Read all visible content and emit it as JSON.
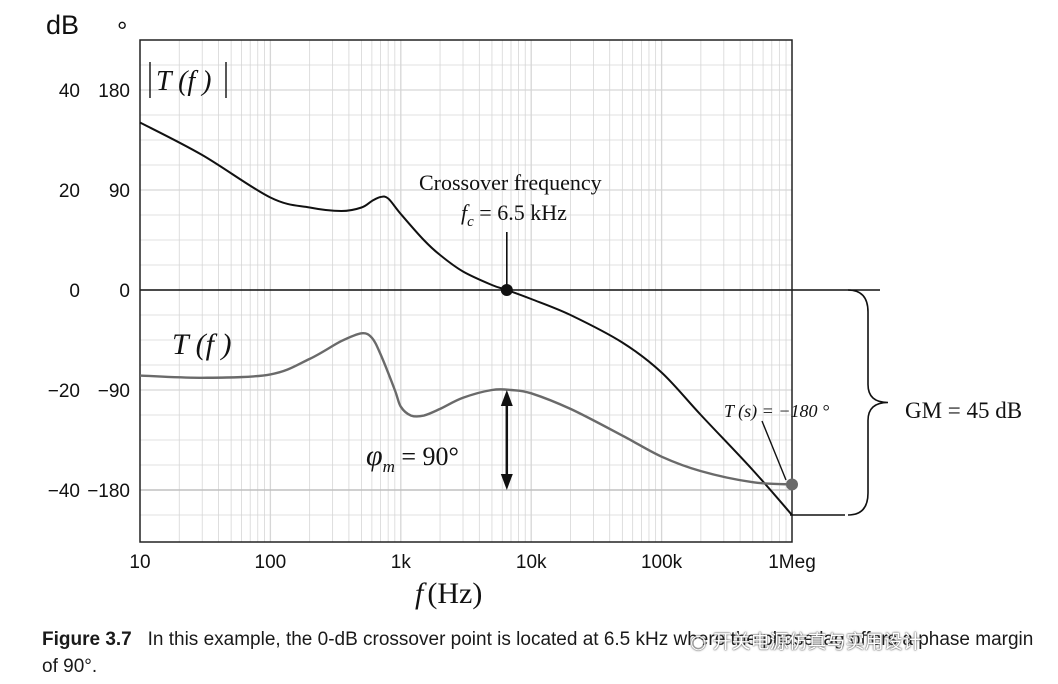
{
  "chart_data": {
    "type": "line",
    "unit_db": "dB",
    "unit_deg": "°",
    "x_ticks": [
      "10",
      "100",
      "1k",
      "10k",
      "100k",
      "1Meg"
    ],
    "x_tick_values": [
      10,
      100,
      1000,
      10000,
      100000,
      1000000
    ],
    "xlim": [
      10,
      1000000
    ],
    "x_scale": "log",
    "xlabel_var": "f",
    "xlabel_unit": "(Hz)",
    "y_db_ticks": [
      "40",
      "20",
      "0",
      "−20",
      "−40"
    ],
    "y_db_values": [
      40,
      20,
      0,
      -20,
      -40
    ],
    "y_deg_ticks": [
      "180",
      "90",
      "0",
      "−90",
      "−180"
    ],
    "y_deg_values": [
      180,
      90,
      0,
      -90,
      -180
    ],
    "ylim_db": [
      -50,
      50
    ],
    "grid": true,
    "series": [
      {
        "name": "|T(f)|",
        "axis": "dB",
        "x": [
          10,
          30,
          100,
          200,
          350,
          500,
          600,
          700,
          800,
          1000,
          1500,
          2000,
          3000,
          5000,
          6500,
          10000,
          20000,
          50000,
          100000,
          200000,
          500000,
          1000000
        ],
        "y": [
          33.5,
          27,
          18.5,
          16.5,
          15.8,
          16.5,
          17.8,
          18.6,
          18.3,
          15.2,
          10,
          7,
          3.7,
          1,
          0,
          -1.8,
          -5,
          -10.5,
          -16.5,
          -25,
          -36,
          -45
        ]
      },
      {
        "name": "T(f)",
        "axis": "deg",
        "x": [
          10,
          30,
          100,
          200,
          350,
          500,
          600,
          700,
          900,
          1000,
          1200,
          1500,
          2000,
          3000,
          5000,
          7000,
          10000,
          20000,
          50000,
          100000,
          200000,
          500000,
          1000000
        ],
        "y": [
          -77,
          -79,
          -76,
          -62,
          -46,
          -39,
          -43,
          -58,
          -90,
          -105,
          -113,
          -113,
          -107,
          -97,
          -90,
          -90,
          -93,
          -107,
          -131,
          -150,
          -163,
          -173,
          -175
        ]
      }
    ]
  },
  "labels": {
    "mag": "|T(f)|",
    "phase": "T(f)",
    "crossover_title": "Crossover frequency",
    "crossover_var": "f",
    "crossover_sub": "c",
    "crossover_value": " = 6.5 kHz",
    "phi": "φ",
    "phi_sub": "m",
    "phi_value": " = 90°",
    "ts_label": "T (s) = −180 °",
    "gm_label": "GM = 45 dB"
  },
  "markers": {
    "crossover_freq": 6500,
    "crossover_db": 0,
    "pm_top_deg": -90,
    "pm_bottom_deg": -180,
    "phase_cross_freq": 1000000,
    "phase_cross_deg": -175,
    "gm_top_db": 0,
    "gm_bottom_db": -45
  },
  "caption": {
    "fig": "Figure 3.7",
    "text": "In this example, the 0-dB crossover point is located at 6.5 kHz where the phase lag offers a phase margin of 90°."
  },
  "watermark": "开关电源仿真与实用设计",
  "colors": {
    "mag": "#111111",
    "phase": "#6a6a6a",
    "grid": "#d6d6d6",
    "frame": "#222222"
  }
}
